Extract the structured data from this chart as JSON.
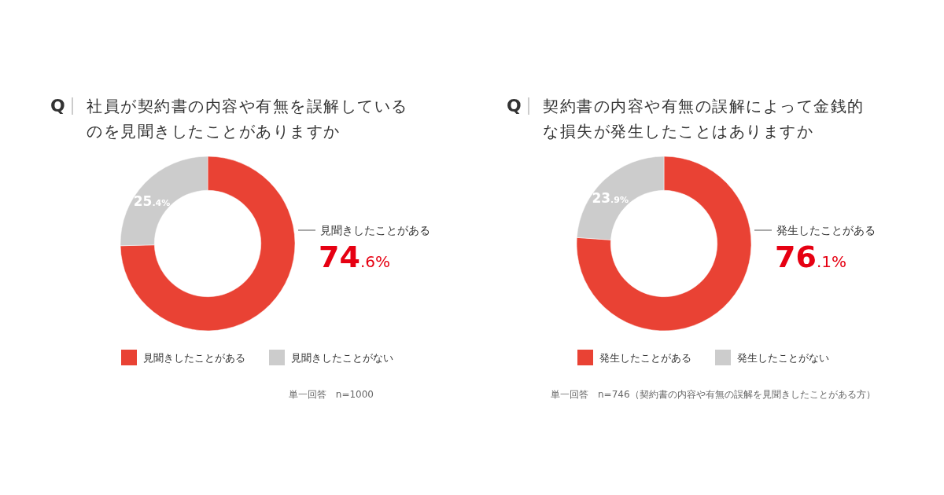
{
  "chart_data": [
    {
      "type": "donut",
      "title": "社員が契約書の内容や有無を誤解しているのを見聞きしたことがありますか",
      "categories": [
        "見聞きしたことがある",
        "見聞きしたことがない"
      ],
      "values": [
        74.6,
        25.4
      ],
      "colors": [
        "#e94234",
        "#cccccc"
      ],
      "value_labels": [
        "74.6%",
        "25.4%"
      ],
      "legend": "bottom",
      "annotations": [
        "Q",
        "単一回答　n=1000"
      ]
    },
    {
      "type": "donut",
      "title": "契約書の内容や有無の誤解によって金銭的な損失が発生したことはありますか",
      "categories": [
        "発生したことがある",
        "発生したことがない"
      ],
      "values": [
        76.1,
        23.9
      ],
      "colors": [
        "#e94234",
        "#cccccc"
      ],
      "value_labels": [
        "76.1%",
        "23.9%"
      ],
      "legend": "bottom",
      "annotations": [
        "Q",
        "単一回答　n=746（契約書の内容や有無の誤解を見聞きしたことがある方）"
      ]
    }
  ]
}
